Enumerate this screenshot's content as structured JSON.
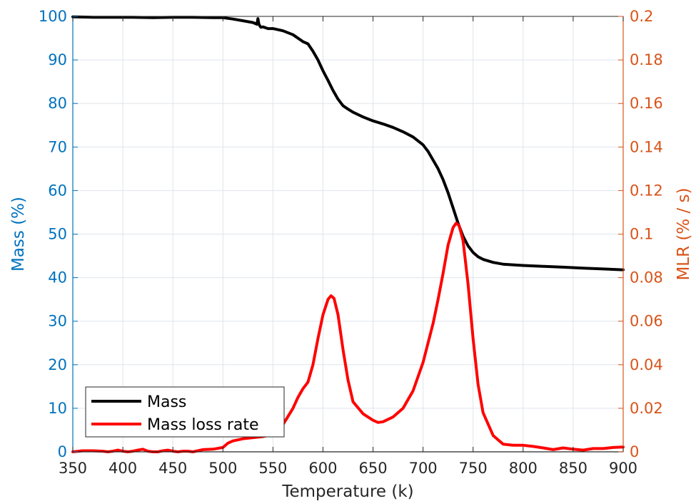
{
  "chart_data": {
    "type": "line",
    "xlabel": "Temperature (k)",
    "ylabel_left": "Mass (%)",
    "ylabel_right": "MLR (% / s)",
    "xlim": [
      350,
      900
    ],
    "ylim_left": [
      0,
      100
    ],
    "ylim_right": [
      0,
      0.2
    ],
    "x_ticks": [
      350,
      400,
      450,
      500,
      550,
      600,
      650,
      700,
      750,
      800,
      850,
      900
    ],
    "y_left_ticks": [
      0,
      10,
      20,
      30,
      40,
      50,
      60,
      70,
      80,
      90,
      100
    ],
    "y_right_ticks": [
      "0",
      "0.02",
      "0.04",
      "0.06",
      "0.08",
      "0.1",
      "0.12",
      "0.14",
      "0.16",
      "0.18",
      "0.2"
    ],
    "grid": true,
    "legend_position": "bottom-left",
    "colors": {
      "left_axis": "#0072BD",
      "right_axis": "#D95319",
      "mass": "#000000",
      "mlr": "#FF0000",
      "grid": "#DFE5EC"
    },
    "series": [
      {
        "name": "Mass",
        "axis": "left",
        "x": [
          350,
          370,
          390,
          410,
          430,
          450,
          470,
          490,
          500,
          510,
          520,
          530,
          534,
          535,
          536,
          537,
          538,
          540,
          545,
          550,
          560,
          570,
          580,
          585,
          590,
          595,
          600,
          605,
          610,
          615,
          620,
          625,
          630,
          640,
          650,
          660,
          670,
          680,
          690,
          700,
          705,
          710,
          715,
          720,
          725,
          730,
          735,
          740,
          745,
          750,
          755,
          760,
          770,
          780,
          800,
          820,
          840,
          860,
          880,
          900
        ],
        "y": [
          99.9,
          99.8,
          99.8,
          99.8,
          99.7,
          99.8,
          99.8,
          99.7,
          99.7,
          99.4,
          99.0,
          98.6,
          98.2,
          99.5,
          98.2,
          97.8,
          97.5,
          97.6,
          97.2,
          97.2,
          96.7,
          95.8,
          94.2,
          93.7,
          92.0,
          90.0,
          87.5,
          85.3,
          83.0,
          81.0,
          79.5,
          78.7,
          78.0,
          76.9,
          76.0,
          75.3,
          74.5,
          73.5,
          72.3,
          70.5,
          69.0,
          67.0,
          65.0,
          62.5,
          59.5,
          56.0,
          52.5,
          49.5,
          47.3,
          45.8,
          44.8,
          44.2,
          43.5,
          43.1,
          42.8,
          42.6,
          42.4,
          42.2,
          42.0,
          41.8
        ]
      },
      {
        "name": "Mass loss rate",
        "axis": "right",
        "x": [
          350,
          360,
          370,
          380,
          385,
          390,
          395,
          400,
          405,
          410,
          415,
          420,
          425,
          430,
          435,
          440,
          445,
          450,
          455,
          460,
          465,
          470,
          475,
          480,
          490,
          500,
          505,
          510,
          520,
          530,
          540,
          550,
          560,
          570,
          575,
          580,
          585,
          590,
          595,
          600,
          605,
          608,
          611,
          615,
          620,
          625,
          630,
          640,
          650,
          655,
          660,
          670,
          680,
          690,
          700,
          710,
          715,
          720,
          725,
          730,
          733,
          736,
          740,
          745,
          750,
          755,
          760,
          770,
          780,
          790,
          800,
          810,
          820,
          830,
          840,
          850,
          860,
          870,
          880,
          890,
          900
        ],
        "y": [
          0.0,
          0.0005,
          0.0005,
          0.0003,
          0.0,
          0.0003,
          0.0008,
          0.0003,
          0.0,
          0.0003,
          0.0008,
          0.0012,
          0.0003,
          0.0,
          0.0,
          0.0005,
          0.0008,
          0.0003,
          0.0,
          0.0003,
          0.0003,
          0.0,
          0.0005,
          0.001,
          0.0012,
          0.002,
          0.004,
          0.005,
          0.006,
          0.0065,
          0.007,
          0.008,
          0.0125,
          0.02,
          0.025,
          0.029,
          0.032,
          0.04,
          0.052,
          0.063,
          0.07,
          0.0717,
          0.0705,
          0.063,
          0.047,
          0.033,
          0.023,
          0.0175,
          0.0145,
          0.0135,
          0.0138,
          0.016,
          0.02,
          0.028,
          0.041,
          0.059,
          0.07,
          0.082,
          0.095,
          0.103,
          0.105,
          0.104,
          0.097,
          0.077,
          0.052,
          0.031,
          0.018,
          0.0075,
          0.0035,
          0.003,
          0.003,
          0.0025,
          0.0018,
          0.001,
          0.0018,
          0.0012,
          0.0008,
          0.0015,
          0.0015,
          0.002,
          0.0022
        ]
      }
    ]
  }
}
